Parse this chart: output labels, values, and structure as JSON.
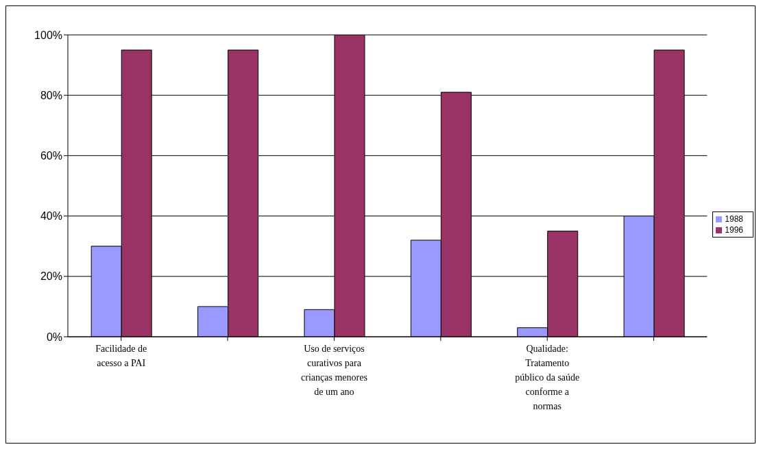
{
  "chart_data": {
    "type": "bar",
    "categories": [
      "Facilidade de acesso a PAI",
      null,
      "Uso de serviços curativos para crianças menores de um ano",
      null,
      "Qualidade: Tratamento público da saúde conforme a normas",
      null
    ],
    "series": [
      {
        "name": "1988",
        "color": "#9999ff",
        "values": [
          30,
          10,
          9,
          32,
          3,
          40
        ]
      },
      {
        "name": "1996",
        "color": "#993366",
        "values": [
          95,
          95,
          100,
          81,
          35,
          95
        ]
      }
    ],
    "ylim": [
      0,
      100
    ],
    "yticks": [
      {
        "value": 0,
        "label": "0%"
      },
      {
        "value": 20,
        "label": "20%"
      },
      {
        "value": 40,
        "label": "40%"
      },
      {
        "value": 60,
        "label": "60%"
      },
      {
        "value": 80,
        "label": "80%"
      },
      {
        "value": 100,
        "label": "100%"
      }
    ],
    "grid": "y",
    "legend": "right"
  }
}
